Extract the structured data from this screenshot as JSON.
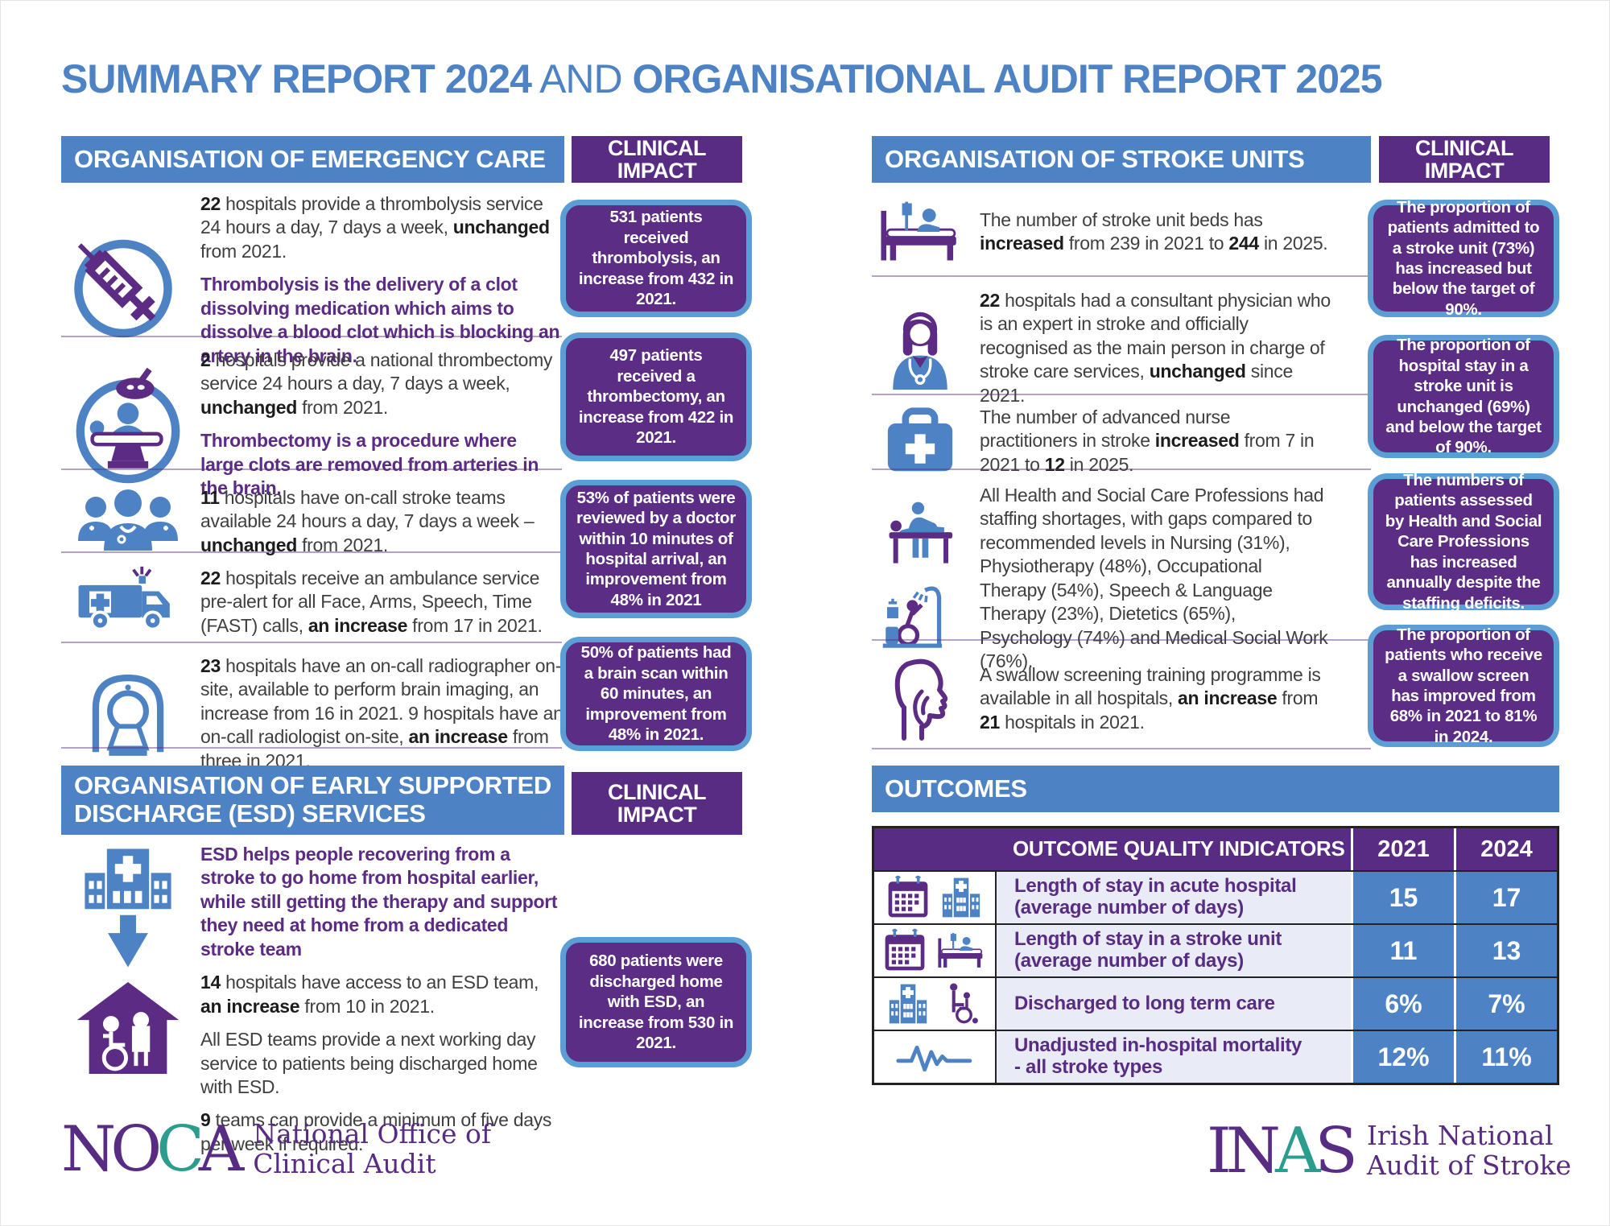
{
  "title": {
    "part1": "SUMMARY REPORT 2024",
    "conj": " AND ",
    "part2": "ORGANISATIONAL AUDIT REPORT 2025"
  },
  "colors": {
    "blue": "#4d82c4",
    "purple_header": "#582c83",
    "purple_box": "#5b2d84",
    "box_border": "#5b9ed6",
    "teal": "#2a9d8f"
  },
  "emergency": {
    "header": "ORGANISATION OF EMERGENCY CARE",
    "impact_header": "CLINICAL IMPACT",
    "items": [
      {
        "icon": "syringe-icon",
        "segments": [
          {
            "b": "22"
          },
          {
            "t": " hospitals provide a thrombolysis service 24 hours a day, 7 days a week, "
          },
          {
            "b": "unchanged"
          },
          {
            "t": " from 2021."
          }
        ],
        "note": "Thrombolysis is the delivery of a clot dissolving medication which aims to dissolve a blood clot which is blocking an artery in the brain."
      },
      {
        "icon": "thrombectomy-theatre-icon",
        "segments": [
          {
            "b": "2"
          },
          {
            "t": " hospitals provide a national thrombectomy service 24 hours a day, 7 days a week, "
          },
          {
            "b": "unchanged"
          },
          {
            "t": " from 2021."
          }
        ],
        "note": "Thrombectomy is a procedure where large clots are removed from arteries in the brain."
      },
      {
        "icon": "stroke-team-icon",
        "segments": [
          {
            "b": "11"
          },
          {
            "t": " hospitals have on-call stroke teams available 24 hours a day, 7 days a week – "
          },
          {
            "b": "unchanged"
          },
          {
            "t": " from 2021."
          }
        ]
      },
      {
        "icon": "ambulance-icon",
        "segments": [
          {
            "b": "22"
          },
          {
            "t": " hospitals receive an ambulance service pre-alert for all Face, Arms, Speech, Time (FAST) calls, "
          },
          {
            "b": "an increase"
          },
          {
            "t": " from 17 in 2021."
          }
        ]
      },
      {
        "icon": "brain-imaging-icon",
        "segments": [
          {
            "b": "23"
          },
          {
            "t": " hospitals have an on-call radiographer on-site, available to perform brain imaging, an increase from 16 in 2021. 9 hospitals have an on-call radiologist on-site, "
          },
          {
            "b": "an increase"
          },
          {
            "t": " from three in 2021."
          }
        ]
      }
    ],
    "impacts": [
      "531 patients received thrombolysis, an increase from 432 in 2021.",
      "497 patients received a thrombectomy, an increase from 422 in 2021.",
      "53% of patients were reviewed by a doctor within 10 minutes of hospital arrival, an improvement from 48% in 2021",
      "50% of patients had a brain scan within 60 minutes, an improvement from 48% in 2021."
    ]
  },
  "esd": {
    "header": "ORGANISATION OF EARLY SUPPORTED DISCHARGE (ESD) SERVICES",
    "impact_header": "CLINICAL IMPACT",
    "intro": "ESD helps people recovering from a stroke to go home from hospital earlier, while still getting the therapy and support they need at home from a dedicated stroke team",
    "paragraphs": [
      {
        "segments": [
          {
            "b": "14"
          },
          {
            "t": " hospitals have access to an ESD team, "
          },
          {
            "b": "an increase"
          },
          {
            "t": " from 10 in 2021."
          }
        ]
      },
      {
        "segments": [
          {
            "t": "All ESD teams provide a next working day service to patients being discharged home with ESD."
          }
        ]
      },
      {
        "segments": [
          {
            "b": "9"
          },
          {
            "t": " teams can provide a minimum of five days per week if required."
          }
        ]
      }
    ],
    "impact": "680 patients were discharged home with ESD, an increase from 530 in 2021."
  },
  "stroke_units": {
    "header": "ORGANISATION OF STROKE UNITS",
    "impact_header": "CLINICAL IMPACT",
    "items": [
      {
        "icon": "stroke-unit-bed-icon",
        "segments": [
          {
            "t": "The number of stroke unit beds has "
          },
          {
            "b": "increased"
          },
          {
            "t": " from 239 in 2021 to "
          },
          {
            "b": "244"
          },
          {
            "t": " in 2025."
          }
        ]
      },
      {
        "icon": "consultant-physician-icon",
        "segments": [
          {
            "b": "22"
          },
          {
            "t": " hospitals had a consultant physician who is an expert in stroke and officially recognised as the main person in charge of stroke care services, "
          },
          {
            "b": "unchanged"
          },
          {
            "t": " since 2021."
          }
        ]
      },
      {
        "icon": "nurse-bag-icon",
        "segments": [
          {
            "t": "The number of advanced nurse practitioners in stroke "
          },
          {
            "b": "increased"
          },
          {
            "t": " from 7 in 2021 to "
          },
          {
            "b": "12"
          },
          {
            "t": " in 2025."
          }
        ]
      },
      {
        "icon": "therapy-staff-icon",
        "segments": [
          {
            "t": "All Health and Social Care Professions had staffing shortages, with gaps compared to recommended levels in Nursing (31%), Physiotherapy (48%), Occupational Therapy (54%), Speech & Language Therapy (23%), Dietetics (65%), Psychology (74%) and Medical Social Work (76%)."
          }
        ]
      },
      {
        "icon": "swallow-screen-icon",
        "segments": [
          {
            "t": "A swallow screening training programme is available in all hospitals, "
          },
          {
            "b": "an increase"
          },
          {
            "t": " from "
          },
          {
            "b": "21"
          },
          {
            "t": " hospitals in 2021."
          }
        ]
      }
    ],
    "impacts": [
      "The proportion of patients admitted to a stroke unit (73%) has increased but below the target of 90%.",
      "The proportion of hospital stay in a stroke unit is unchanged (69%) and below the target of 90%.",
      "The numbers of patients assessed by Health and Social Care Professions has increased annually despite the staffing deficits.",
      "The proportion of patients who receive a swallow screen has improved from 68% in 2021 to 81% in 2024."
    ]
  },
  "outcomes": {
    "header": "OUTCOMES",
    "table": {
      "col_indicator": "OUTCOME QUALITY INDICATORS",
      "col_2021": "2021",
      "col_2024": "2024",
      "rows": [
        {
          "label": "Length of stay in acute hospital",
          "sub": "(average number of days)",
          "v2021": "15",
          "v2024": "17"
        },
        {
          "label": "Length of stay in a stroke unit",
          "sub": "(average number of days)",
          "v2021": "11",
          "v2024": "13"
        },
        {
          "label": "Discharged to long term care",
          "sub": "",
          "v2021": "6%",
          "v2024": "7%"
        },
        {
          "label": "Unadjusted in-hospital mortality",
          "sub": "- all stroke types",
          "v2021": "12%",
          "v2024": "11%"
        }
      ]
    }
  },
  "logos": {
    "noca": {
      "l1": "NO",
      "l2": "C",
      "l3": "A",
      "line1": "National Office of",
      "line2": "Clinical Audit"
    },
    "inas": {
      "l1": "IN",
      "l2": "A",
      "l3": "S",
      "line1": "Irish National",
      "line2": "Audit of Stroke"
    }
  }
}
